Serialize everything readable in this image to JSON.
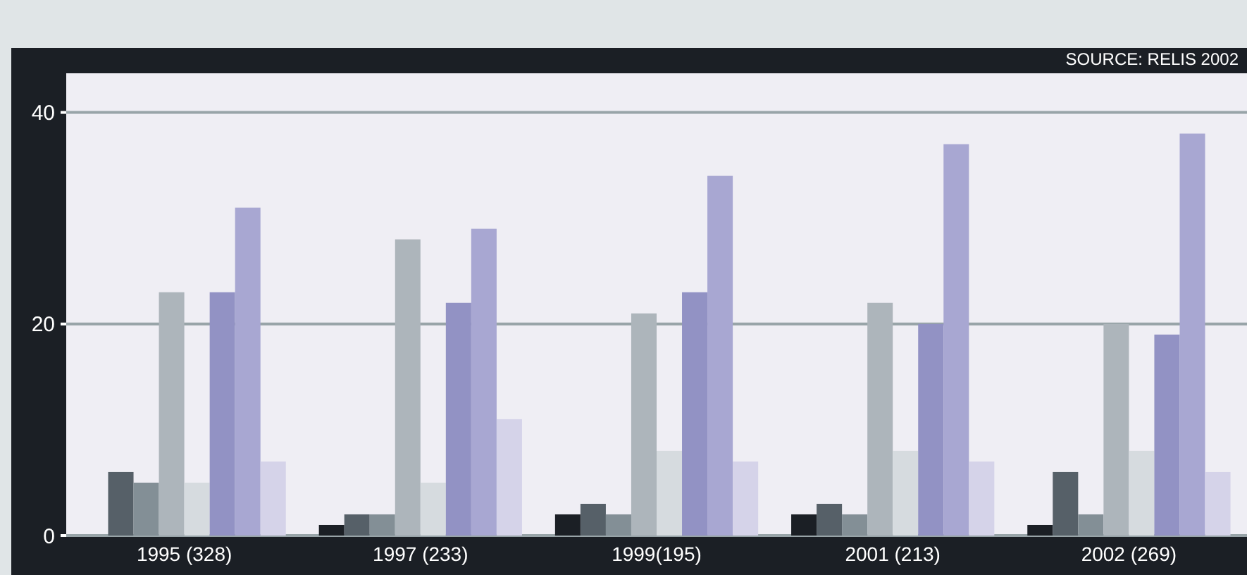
{
  "chart_data": {
    "type": "bar",
    "categories": [
      "1995  (328)",
      "1997 (233)",
      "1999(195)",
      "2001 (213)",
      "2002 (269)"
    ],
    "series": [
      {
        "color": "#1b1f25",
        "values": [
          0,
          1,
          2,
          2,
          1
        ]
      },
      {
        "color": "#566068",
        "values": [
          6,
          2,
          3,
          3,
          6
        ]
      },
      {
        "color": "#838f96",
        "values": [
          5,
          2,
          2,
          2,
          2
        ]
      },
      {
        "color": "#adb5bb",
        "values": [
          23,
          28,
          21,
          22,
          20
        ]
      },
      {
        "color": "#d6dbdf",
        "values": [
          5,
          5,
          8,
          8,
          8
        ]
      },
      {
        "color": "#9292c4",
        "values": [
          23,
          22,
          23,
          20,
          19
        ]
      },
      {
        "color": "#a8a7d2",
        "values": [
          31,
          29,
          34,
          37,
          38
        ]
      },
      {
        "color": "#d5d3e9",
        "values": [
          7,
          11,
          7,
          7,
          6
        ]
      }
    ],
    "ylim": [
      0,
      43.7
    ],
    "yticks": [
      0,
      20,
      40
    ],
    "grid": "y",
    "annotations": [
      "SOURCE: RELIS 2002"
    ]
  }
}
